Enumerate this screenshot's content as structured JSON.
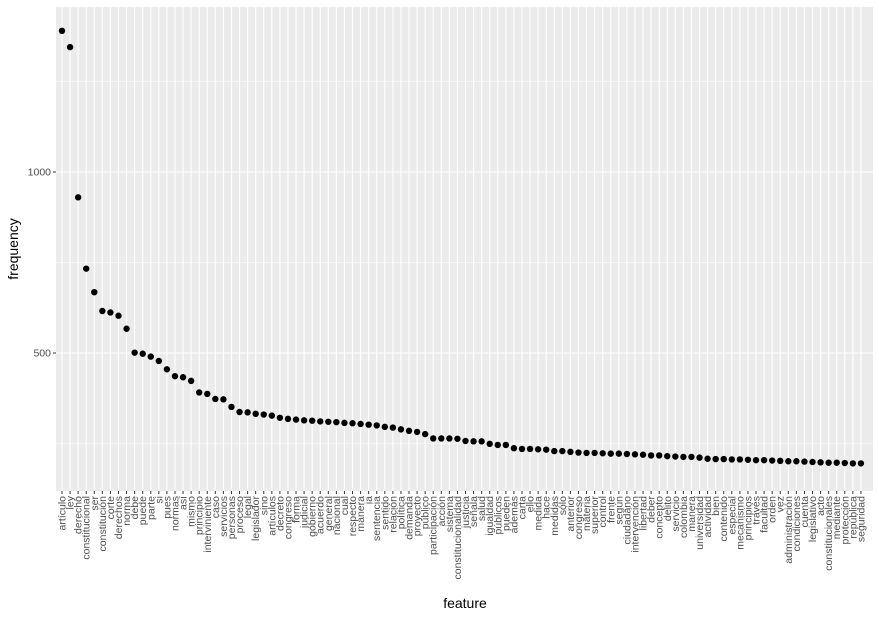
{
  "chart_data": {
    "type": "scatter",
    "xlabel": "feature",
    "ylabel": "frequency",
    "ylim": [
      160,
      1440
    ],
    "y_ticks": [
      500,
      1000
    ],
    "grid": true,
    "colors": {
      "panel": "#ebebeb",
      "grid": "#ffffff",
      "point": "#000000",
      "tick_text": "#4d4d4d"
    },
    "categories": [
      "artículo",
      "ley",
      "derecho",
      "constitucional",
      "ser",
      "constitución",
      "corte",
      "derechos",
      "norma",
      "debe",
      "puede",
      "parte",
      "si",
      "pues",
      "normas",
      "así",
      "mismo",
      "principio",
      "interviniente",
      "caso",
      "servicios",
      "personas",
      "proceso",
      "legal",
      "legislador",
      "sino",
      "artículos",
      "decreto",
      "congreso",
      "forma",
      "judicial",
      "gobierno",
      "acuerdo",
      "general",
      "nacional",
      "cual",
      "respecto",
      "manera",
      "ia",
      "sentencia",
      "sentido",
      "relación",
      "política",
      "demanda",
      "proyecto",
      "público",
      "participación",
      "acción",
      "sistema",
      "constitucionalidad",
      "justicia",
      "señala",
      "salud",
      "igualdad",
      "públicos",
      "pueden",
      "además",
      "carta",
      "ello",
      "medida",
      "hace",
      "medidas",
      "sólo",
      "anterior",
      "congreso",
      "materia",
      "superior",
      "control",
      "frente",
      "según",
      "ciudadano",
      "intervención",
      "libertad",
      "deber",
      "concepto",
      "delito",
      "servicio",
      "colombia",
      "manera",
      "universidad",
      "actividad",
      "bien",
      "contenido",
      "especial",
      "mecanismo",
      "principios",
      "través",
      "facultad",
      "orden",
      "vez",
      "administración",
      "condiciones",
      "cuenta",
      "legislativo",
      "acto",
      "constitucionales",
      "mediante",
      "protección",
      "república",
      "seguridad"
    ],
    "values": [
      1390,
      1345,
      930,
      733,
      668,
      616,
      612,
      603,
      567,
      501,
      498,
      490,
      478,
      455,
      436,
      433,
      423,
      391,
      387,
      373,
      372,
      351,
      337,
      336,
      332,
      330,
      327,
      321,
      318,
      316,
      314,
      313,
      311,
      310,
      309,
      307,
      306,
      304,
      302,
      300,
      296,
      294,
      289,
      285,
      282,
      276,
      264,
      264,
      264,
      263,
      257,
      256,
      256,
      249,
      246,
      246,
      237,
      235,
      235,
      234,
      233,
      229,
      229,
      227,
      225,
      224,
      224,
      223,
      222,
      222,
      221,
      220,
      219,
      217,
      217,
      215,
      214,
      213,
      213,
      211,
      208,
      207,
      207,
      206,
      206,
      205,
      204,
      204,
      203,
      202,
      201,
      201,
      200,
      199,
      198,
      197,
      197,
      196,
      195,
      195
    ]
  }
}
